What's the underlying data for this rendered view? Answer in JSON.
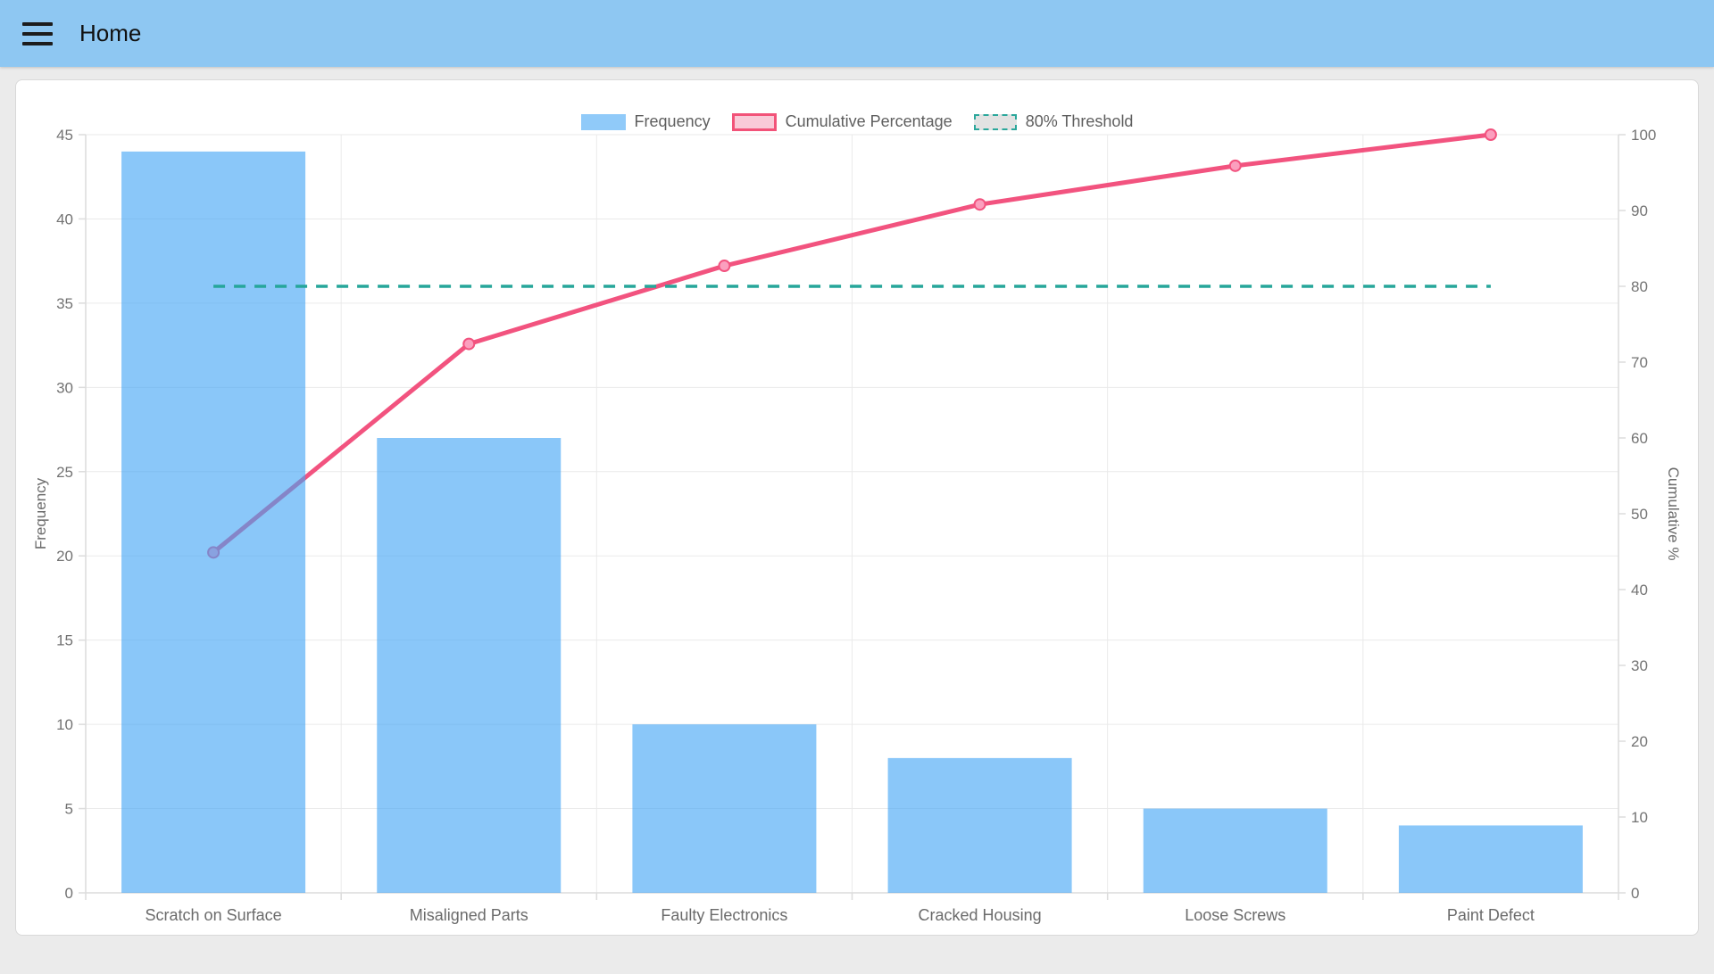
{
  "header": {
    "title": "Home"
  },
  "legend": {
    "items": [
      {
        "label": "Frequency"
      },
      {
        "label": "Cumulative Percentage"
      },
      {
        "label": "80% Threshold"
      }
    ]
  },
  "chart_data": {
    "type": "bar",
    "subtype": "pareto",
    "title": "",
    "categories": [
      "Scratch on Surface",
      "Misaligned Parts",
      "Faulty Electronics",
      "Cracked Housing",
      "Loose Screws",
      "Paint Defect"
    ],
    "series": [
      {
        "name": "Frequency",
        "type": "bar",
        "axis": "left",
        "color": "#90CAF9",
        "values": [
          44,
          27,
          10,
          8,
          5,
          4
        ]
      },
      {
        "name": "Cumulative Percentage",
        "type": "line",
        "axis": "right",
        "color": "#F2537F",
        "values": [
          44.9,
          72.4,
          82.7,
          90.8,
          95.9,
          100
        ]
      },
      {
        "name": "80% Threshold",
        "type": "threshold",
        "axis": "right",
        "color": "#26A69A",
        "value": 80
      }
    ],
    "left_axis": {
      "label": "Frequency",
      "min": 0,
      "max": 45,
      "step": 5,
      "ticks": [
        0,
        5,
        10,
        15,
        20,
        25,
        30,
        35,
        40,
        45
      ]
    },
    "right_axis": {
      "label": "Cumulative %",
      "min": 0,
      "max": 100,
      "step": 10,
      "ticks": [
        0,
        10,
        20,
        30,
        40,
        50,
        60,
        70,
        80,
        90,
        100
      ]
    },
    "legend_position": "top",
    "grid": true
  },
  "colors": {
    "header_bg": "#8EC7F2",
    "page_bg": "#EBEBEB",
    "bar": "#90CAF9",
    "line": "#F2537F",
    "threshold": "#26A69A"
  }
}
